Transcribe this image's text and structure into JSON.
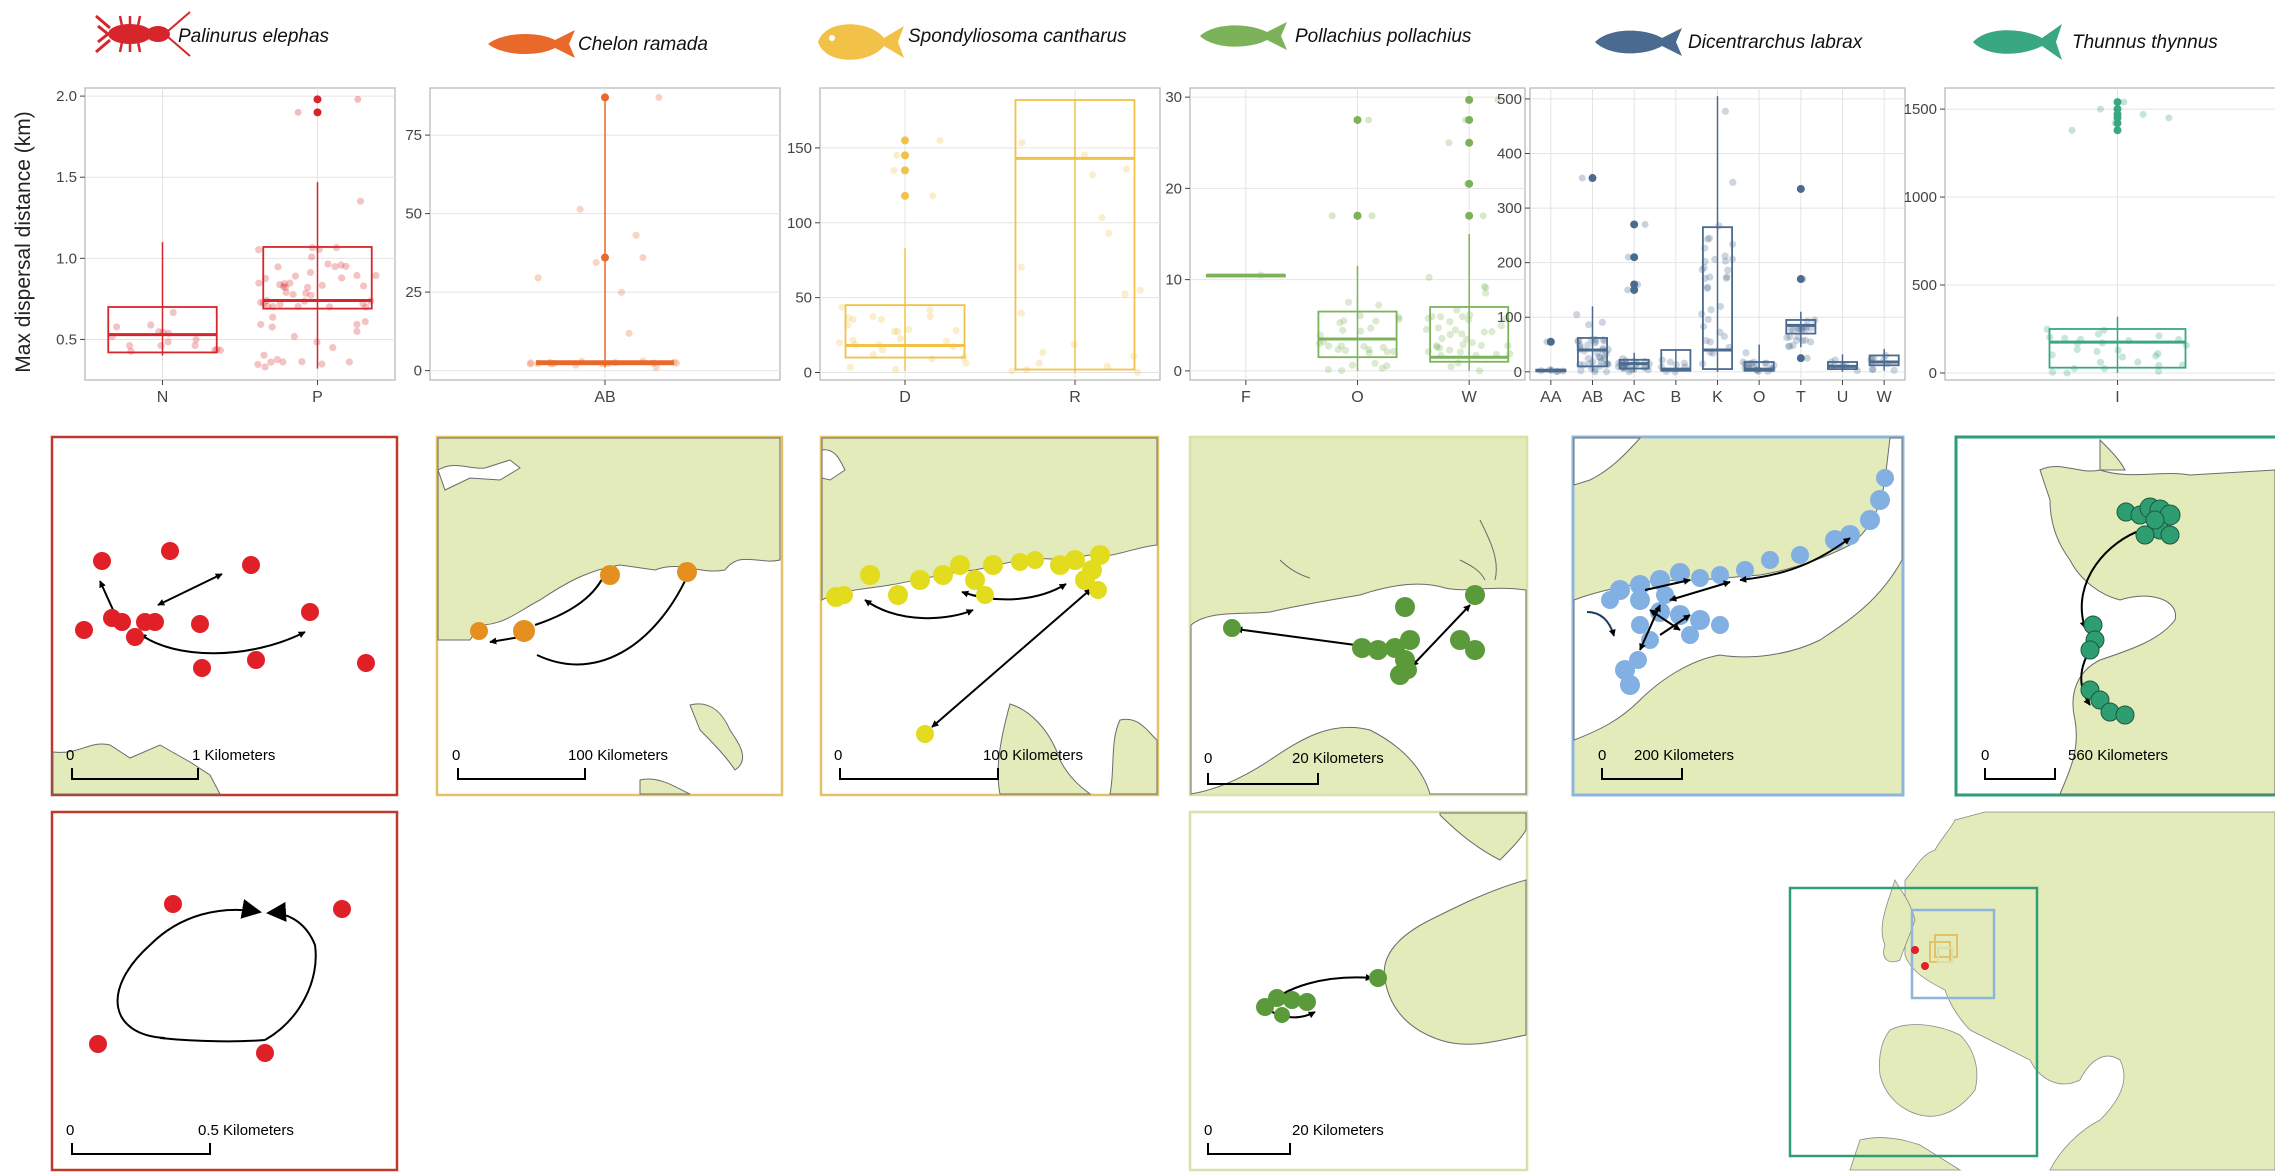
{
  "y_axis_label": "Max dispersal distance (km)",
  "colors": {
    "red": "#d7262b",
    "orange": "#e8692a",
    "yellow": "#f2c248",
    "green": "#7cb35a",
    "slate": "#4b6a8f",
    "teal": "#3aa783",
    "land": "#e2ebb9",
    "map_red_dot": "#e01f26",
    "map_orange_dot": "#e58f1f",
    "map_yellow_dot": "#e3dc1e",
    "map_green_dot": "#5a9a3a",
    "map_blue_dot": "#82b0e2",
    "map_teal_dot": "#2e9d72"
  },
  "species": [
    {
      "name": "Palinurus elephas",
      "icon": "lobster-icon"
    },
    {
      "name": "Chelon ramada",
      "icon": "fish-icon"
    },
    {
      "name": "Spondyliosoma cantharus",
      "icon": "fish-icon"
    },
    {
      "name": "Pollachius pollachius",
      "icon": "fish-icon"
    },
    {
      "name": "Dicentrarchus labrax",
      "icon": "fish-icon"
    },
    {
      "name": "Thunnus thynnus",
      "icon": "tuna-icon"
    }
  ],
  "chart_data": [
    {
      "type": "box",
      "species": "Palinurus elephas",
      "grid": true,
      "ylim": [
        0.25,
        2.05
      ],
      "yticks": [
        "0.5",
        "1.0",
        "1.5",
        "2.0"
      ],
      "categories": [
        "N",
        "P"
      ],
      "boxes": [
        {
          "q1": 0.42,
          "median": 0.53,
          "q3": 0.7,
          "lo": 0.4,
          "hi": 1.1,
          "outliers": [],
          "n": 16
        },
        {
          "q1": 0.69,
          "median": 0.74,
          "q3": 1.07,
          "lo": 0.32,
          "hi": 1.47,
          "outliers": [
            1.98,
            1.9
          ],
          "n": 60
        }
      ]
    },
    {
      "type": "box",
      "species": "Chelon ramada",
      "grid": true,
      "ylim": [
        -3,
        90
      ],
      "yticks": [
        "0",
        "25",
        "50",
        "75"
      ],
      "categories": [
        "AB"
      ],
      "boxes": [
        {
          "q1": 2,
          "median": 2.5,
          "q3": 3,
          "lo": 1,
          "hi": 87,
          "outliers": [
            87,
            36
          ],
          "n": 22
        }
      ]
    },
    {
      "type": "box",
      "species": "Spondyliosoma cantharus",
      "grid": true,
      "ylim": [
        -5,
        190
      ],
      "yticks": [
        "0",
        "50",
        "100",
        "150"
      ],
      "categories": [
        "D",
        "R"
      ],
      "boxes": [
        {
          "q1": 10,
          "median": 18,
          "q3": 45,
          "lo": 1,
          "hi": 83,
          "outliers": [
            155,
            145,
            135,
            118
          ],
          "n": 26
        },
        {
          "q1": 2,
          "median": 143,
          "q3": 182,
          "lo": 0,
          "hi": 182,
          "outliers": [],
          "n": 18
        }
      ]
    },
    {
      "type": "box",
      "species": "Pollachius pollachius",
      "grid": true,
      "ylim": [
        -1,
        31
      ],
      "yticks": [
        "0",
        "10",
        "20",
        "30"
      ],
      "categories": [
        "F",
        "O",
        "W"
      ],
      "boxes": [
        {
          "q1": 10.5,
          "median": 10.5,
          "q3": 10.5,
          "lo": 10.5,
          "hi": 10.5,
          "outliers": [],
          "n": 1
        },
        {
          "q1": 1.5,
          "median": 3.5,
          "q3": 6.5,
          "lo": 0,
          "hi": 11.5,
          "outliers": [
            27.5,
            17,
            17
          ],
          "n": 30
        },
        {
          "q1": 1,
          "median": 1.5,
          "q3": 7,
          "lo": 0,
          "hi": 15,
          "outliers": [
            29.7,
            27.5,
            25,
            20.5,
            17
          ],
          "n": 40
        }
      ]
    },
    {
      "type": "box",
      "species": "Dicentrarchus labrax",
      "grid": true,
      "ylim": [
        -15,
        520
      ],
      "yticks": [
        "0",
        "100",
        "200",
        "300",
        "400",
        "500"
      ],
      "categories": [
        "AA",
        "AB",
        "AC",
        "B",
        "K",
        "O",
        "T",
        "U",
        "W"
      ],
      "boxes": [
        {
          "q1": 1,
          "median": 2,
          "q3": 4,
          "lo": 0,
          "hi": 8,
          "outliers": [
            55
          ],
          "n": 6
        },
        {
          "q1": 10,
          "median": 40,
          "q3": 62,
          "lo": 0,
          "hi": 120,
          "outliers": [
            355
          ],
          "n": 40
        },
        {
          "q1": 6,
          "median": 15,
          "q3": 22,
          "lo": 0,
          "hi": 35,
          "outliers": [
            270,
            210,
            160,
            150
          ],
          "n": 24
        },
        {
          "q1": 2,
          "median": 5,
          "q3": 40,
          "lo": 0,
          "hi": 40,
          "outliers": [],
          "n": 8
        },
        {
          "q1": 5,
          "median": 40,
          "q3": 265,
          "lo": 0,
          "hi": 505,
          "outliers": [],
          "n": 34
        },
        {
          "q1": 2,
          "median": 5,
          "q3": 18,
          "lo": 0,
          "hi": 50,
          "outliers": [],
          "n": 20
        },
        {
          "q1": 70,
          "median": 85,
          "q3": 95,
          "lo": 45,
          "hi": 110,
          "outliers": [
            335,
            170,
            25
          ],
          "n": 22
        },
        {
          "q1": 5,
          "median": 10,
          "q3": 18,
          "lo": 0,
          "hi": 32,
          "outliers": [],
          "n": 8
        },
        {
          "q1": 12,
          "median": 18,
          "q3": 30,
          "lo": 2,
          "hi": 42,
          "outliers": [],
          "n": 10
        }
      ]
    },
    {
      "type": "box",
      "species": "Thunnus thynnus",
      "grid": true,
      "ylim": [
        -40,
        1620
      ],
      "yticks": [
        "0",
        "500",
        "1000",
        "1500"
      ],
      "categories": [
        "I"
      ],
      "boxes": [
        {
          "q1": 30,
          "median": 175,
          "q3": 250,
          "lo": 0,
          "hi": 320,
          "outliers": [
            1540,
            1500,
            1470,
            1450,
            1420,
            1380
          ],
          "n": 28
        }
      ]
    }
  ],
  "maps": {
    "scalebars": {
      "lobster_top": {
        "zero": "0",
        "label": "1 Kilometers"
      },
      "mullet": {
        "zero": "0",
        "label": "100 Kilometers"
      },
      "bream": {
        "zero": "0",
        "label": "100 Kilometers"
      },
      "pollack_top": {
        "zero": "0",
        "label": "20 Kilometers"
      },
      "bass": {
        "zero": "0",
        "label": "200 Kilometers"
      },
      "tuna": {
        "zero": "0",
        "label": "560 Kilometers"
      },
      "lobster_bottom": {
        "zero": "0",
        "label": "0.5 Kilometers"
      },
      "pollack_bottom": {
        "zero": "0",
        "label": "20 Kilometers"
      }
    }
  }
}
